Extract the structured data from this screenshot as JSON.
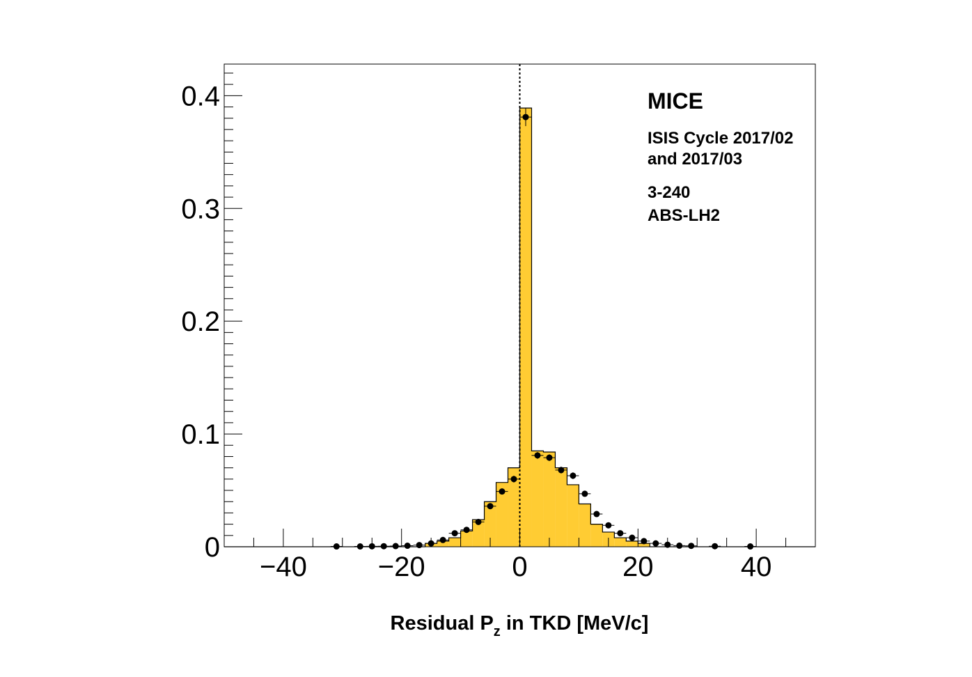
{
  "chart_data": {
    "type": "bar",
    "xlabel_parts": [
      "Residual P",
      "z",
      " in TKD [MeV/c]"
    ],
    "ylabel": "",
    "xlim": [
      -50,
      50
    ],
    "ylim": [
      0,
      0.428
    ],
    "x_ticks": [
      {
        "value": -40,
        "label": "−40"
      },
      {
        "value": -20,
        "label": "−20"
      },
      {
        "value": 0,
        "label": "0"
      },
      {
        "value": 20,
        "label": "20"
      },
      {
        "value": 40,
        "label": "40"
      }
    ],
    "y_ticks": [
      {
        "value": 0,
        "label": "0"
      },
      {
        "value": 0.1,
        "label": "0.1"
      },
      {
        "value": 0.2,
        "label": "0.2"
      },
      {
        "value": 0.3,
        "label": "0.3"
      },
      {
        "value": 0.4,
        "label": "0.4"
      }
    ],
    "reference_line_x": 0,
    "annotations": {
      "title": "MICE",
      "lines": [
        "ISIS Cycle 2017/02",
        "and 2017/03",
        "3-240",
        "ABS-LH2"
      ]
    },
    "histogram": {
      "color": "#ffcc33",
      "bin_width": 2,
      "bins": [
        {
          "x": -15,
          "value": 0.003
        },
        {
          "x": -13,
          "value": 0.005
        },
        {
          "x": -11,
          "value": 0.008
        },
        {
          "x": -9,
          "value": 0.014
        },
        {
          "x": -7,
          "value": 0.024
        },
        {
          "x": -5,
          "value": 0.04
        },
        {
          "x": -3,
          "value": 0.057
        },
        {
          "x": -1,
          "value": 0.07
        },
        {
          "x": 1,
          "value": 0.389
        },
        {
          "x": 3,
          "value": 0.085
        },
        {
          "x": 5,
          "value": 0.084
        },
        {
          "x": 7,
          "value": 0.07
        },
        {
          "x": 9,
          "value": 0.055
        },
        {
          "x": 11,
          "value": 0.038
        },
        {
          "x": 13,
          "value": 0.02
        },
        {
          "x": 15,
          "value": 0.013
        },
        {
          "x": 17,
          "value": 0.008
        },
        {
          "x": 19,
          "value": 0.005
        },
        {
          "x": 21,
          "value": 0.003
        }
      ]
    },
    "points": {
      "color": "#000000",
      "x_error": 1,
      "data": [
        {
          "x": -31,
          "y": 0.0003,
          "err": 0.0003
        },
        {
          "x": -27,
          "y": 0.0003,
          "err": 0.0003
        },
        {
          "x": -25,
          "y": 0.0004,
          "err": 0.0003
        },
        {
          "x": -23,
          "y": 0.0005,
          "err": 0.0003
        },
        {
          "x": -21,
          "y": 0.0006,
          "err": 0.0003
        },
        {
          "x": -19,
          "y": 0.0009,
          "err": 0.0004
        },
        {
          "x": -17,
          "y": 0.0015,
          "err": 0.0005
        },
        {
          "x": -15,
          "y": 0.003,
          "err": 0.0006
        },
        {
          "x": -13,
          "y": 0.006,
          "err": 0.0008
        },
        {
          "x": -11,
          "y": 0.012,
          "err": 0.001
        },
        {
          "x": -9,
          "y": 0.015,
          "err": 0.0012
        },
        {
          "x": -7,
          "y": 0.022,
          "err": 0.0015
        },
        {
          "x": -5,
          "y": 0.036,
          "err": 0.002
        },
        {
          "x": -3,
          "y": 0.049,
          "err": 0.0025
        },
        {
          "x": -1,
          "y": 0.06,
          "err": 0.003
        },
        {
          "x": 1,
          "y": 0.381,
          "err": 0.008
        },
        {
          "x": 3,
          "y": 0.081,
          "err": 0.003
        },
        {
          "x": 5,
          "y": 0.079,
          "err": 0.003
        },
        {
          "x": 7,
          "y": 0.068,
          "err": 0.003
        },
        {
          "x": 9,
          "y": 0.063,
          "err": 0.003
        },
        {
          "x": 11,
          "y": 0.047,
          "err": 0.0025
        },
        {
          "x": 13,
          "y": 0.029,
          "err": 0.002
        },
        {
          "x": 15,
          "y": 0.019,
          "err": 0.0015
        },
        {
          "x": 17,
          "y": 0.012,
          "err": 0.0012
        },
        {
          "x": 19,
          "y": 0.008,
          "err": 0.001
        },
        {
          "x": 21,
          "y": 0.005,
          "err": 0.0008
        },
        {
          "x": 23,
          "y": 0.003,
          "err": 0.0006
        },
        {
          "x": 25,
          "y": 0.0018,
          "err": 0.0005
        },
        {
          "x": 27,
          "y": 0.001,
          "err": 0.0004
        },
        {
          "x": 29,
          "y": 0.0008,
          "err": 0.0004
        },
        {
          "x": 33,
          "y": 0.0005,
          "err": 0.0003
        },
        {
          "x": 39,
          "y": 0.0003,
          "err": 0.0003
        }
      ]
    }
  }
}
